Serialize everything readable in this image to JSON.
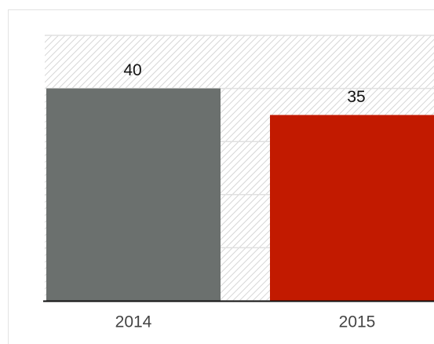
{
  "chart_data": {
    "type": "bar",
    "categories": [
      "2014",
      "2015"
    ],
    "series": [
      {
        "name": null,
        "colors": [
          "#6b706e",
          "#c21a00"
        ],
        "values": [
          40,
          35
        ]
      }
    ],
    "ylim": [
      0,
      50
    ],
    "yticks": [
      0,
      10,
      20,
      30,
      40,
      50
    ],
    "grid": true
  }
}
